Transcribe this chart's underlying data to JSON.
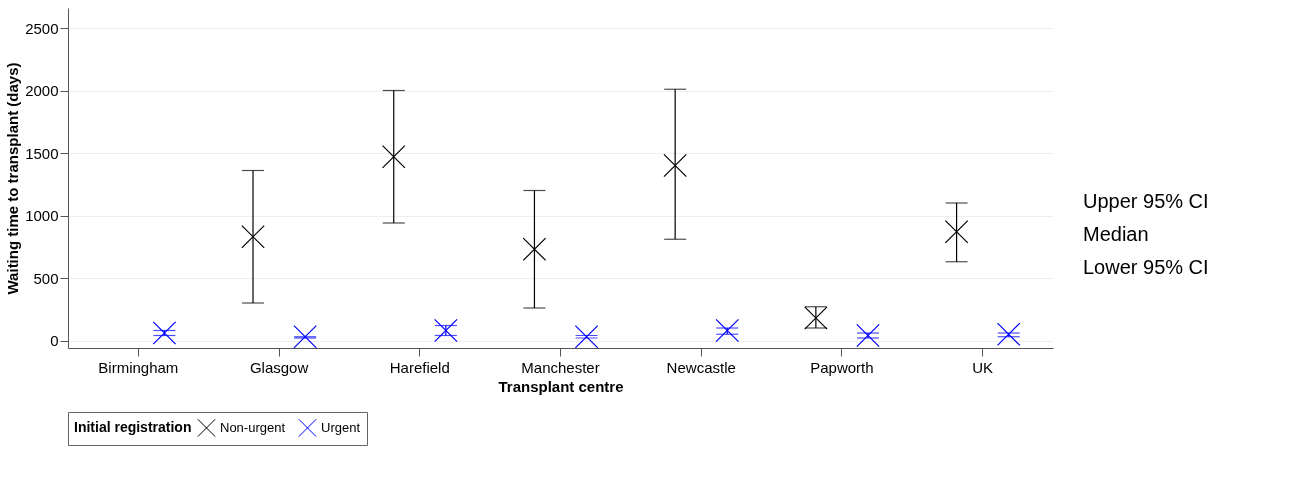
{
  "chart_data": {
    "type": "scatter",
    "xlabel": "Transplant centre",
    "ylabel": "Waiting time to transplant (days)",
    "legend_title": "Initial registration",
    "categories": [
      "Birmingham",
      "Glasgow",
      "Harefield",
      "Manchester",
      "Newcastle",
      "Papworth",
      "UK"
    ],
    "series": [
      {
        "name": "Non-urgent",
        "color": "#000000",
        "values": [
          null,
          830,
          1470,
          730,
          1400,
          180,
          870
        ],
        "errors": [
          null,
          [
            300,
            1360
          ],
          [
            940,
            2000
          ],
          [
            260,
            1200
          ],
          [
            810,
            2010
          ],
          [
            100,
            270
          ],
          [
            630,
            1100
          ]
        ]
      },
      {
        "name": "Urgent",
        "color": "#0000ff",
        "values": [
          60,
          30,
          80,
          30,
          80,
          40,
          50
        ],
        "errors": [
          [
            40,
            80
          ],
          [
            20,
            30
          ],
          [
            40,
            120
          ],
          [
            20,
            40
          ],
          [
            50,
            100
          ],
          [
            20,
            60
          ],
          [
            30,
            60
          ]
        ]
      }
    ],
    "ylim": [
      -60,
      2660
    ],
    "yticks": [
      0,
      500,
      1000,
      1500,
      2000,
      2500
    ],
    "grid": "y",
    "marker": "cross",
    "legend": "bottom",
    "annotations": [
      "Upper 95% CI",
      "Median",
      "Lower 95% CI"
    ]
  }
}
